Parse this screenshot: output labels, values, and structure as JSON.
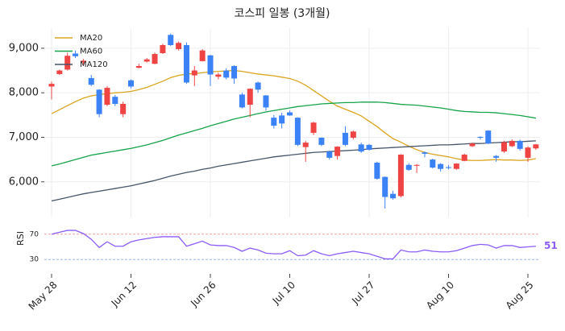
{
  "chart_data": [
    {
      "type": "candlestick",
      "title": "코스피 일봉 (3개월)",
      "categories": [
        "May 28",
        null,
        null,
        null,
        null,
        null,
        null,
        null,
        null,
        null,
        "Jun 12",
        null,
        null,
        null,
        null,
        null,
        null,
        null,
        null,
        null,
        "Jun 26",
        null,
        null,
        null,
        null,
        null,
        null,
        null,
        null,
        null,
        "Jul 10",
        null,
        null,
        null,
        null,
        null,
        null,
        null,
        null,
        null,
        "Jul 27",
        null,
        null,
        null,
        null,
        null,
        null,
        null,
        null,
        null,
        "Aug 10",
        null,
        null,
        null,
        null,
        null,
        null,
        null,
        null,
        null,
        "Aug 25",
        null
      ],
      "open": [
        8140,
        8420,
        8520,
        8880,
        8680,
        8330,
        8070,
        7730,
        7910,
        7520,
        8280,
        8560,
        8700,
        8650,
        8890,
        9300,
        8980,
        9070,
        8390,
        8710,
        8840,
        8360,
        8500,
        8600,
        7960,
        7730,
        8230,
        7940,
        7440,
        7490,
        7560,
        7440,
        6780,
        7100,
        6990,
        6680,
        6580,
        7100,
        6990,
        6840,
        6830,
        6430,
        6110,
        5730,
        5680,
        6380,
        6360,
        6660,
        6500,
        6400,
        6330,
        6290,
        6470,
        6800,
        7010,
        7150,
        6580,
        6680,
        6800,
        6920,
        6540,
        6750
      ],
      "high": [
        8250,
        8520,
        8900,
        8950,
        8760,
        8400,
        8080,
        8150,
        7950,
        7800,
        8300,
        8650,
        8780,
        8900,
        9100,
        9330,
        9150,
        9130,
        8600,
        8980,
        8850,
        8450,
        8550,
        8620,
        8000,
        8100,
        8250,
        7950,
        7500,
        7550,
        7600,
        7450,
        6920,
        7350,
        7000,
        6700,
        6800,
        7250,
        7150,
        6880,
        6850,
        6450,
        6120,
        5800,
        6620,
        6420,
        6400,
        6680,
        6520,
        6420,
        6380,
        6420,
        6630,
        6880,
        7020,
        7160,
        6600,
        6920,
        6950,
        6950,
        6800,
        6850
      ],
      "low": [
        7850,
        8400,
        8500,
        8780,
        8600,
        8150,
        7450,
        7700,
        7700,
        7450,
        8100,
        8550,
        8680,
        8640,
        8870,
        9050,
        8950,
        8200,
        8150,
        8700,
        8150,
        8300,
        8300,
        8200,
        7650,
        7450,
        8000,
        7600,
        7200,
        7200,
        7480,
        6800,
        6450,
        7050,
        6800,
        6500,
        6500,
        6800,
        6950,
        6650,
        6700,
        6050,
        5400,
        5600,
        5650,
        6250,
        6200,
        6550,
        6300,
        6230,
        6280,
        6270,
        6460,
        6780,
        6950,
        6850,
        6450,
        6650,
        6780,
        6700,
        6450,
        6720
      ],
      "close": [
        8200,
        8500,
        8830,
        8820,
        8720,
        8180,
        7520,
        8110,
        7750,
        7750,
        8140,
        8600,
        8750,
        8870,
        9070,
        9070,
        9120,
        8230,
        8500,
        8950,
        8410,
        8410,
        8340,
        8320,
        7670,
        8090,
        8070,
        7670,
        7260,
        7310,
        7490,
        6830,
        6880,
        7330,
        6830,
        6540,
        6790,
        6830,
        7130,
        6680,
        6720,
        6070,
        5660,
        5630,
        6610,
        6270,
        6380,
        6630,
        6320,
        6290,
        6310,
        6410,
        6610,
        6860,
        6990,
        6860,
        6540,
        6890,
        6920,
        6740,
        6770,
        6840
      ],
      "up_color": "#ef4444",
      "down_color": "#3b82f6",
      "series": [
        {
          "name": "MA20",
          "color": "#daa520",
          "values": [
            7530,
            7620,
            7710,
            7800,
            7880,
            7930,
            7960,
            7980,
            8000,
            8010,
            8030,
            8070,
            8120,
            8190,
            8260,
            8340,
            8390,
            8420,
            8430,
            8450,
            8470,
            8480,
            8490,
            8500,
            8480,
            8450,
            8420,
            8400,
            8380,
            8350,
            8320,
            8260,
            8170,
            8050,
            7930,
            7810,
            7700,
            7630,
            7560,
            7480,
            7360,
            7240,
            7100,
            6970,
            6890,
            6800,
            6720,
            6660,
            6620,
            6590,
            6560,
            6520,
            6490,
            6480,
            6480,
            6490,
            6500,
            6490,
            6490,
            6480,
            6490,
            6520
          ]
        },
        {
          "name": "MA60",
          "color": "#16a34a",
          "values": [
            6360,
            6400,
            6450,
            6500,
            6550,
            6600,
            6630,
            6660,
            6690,
            6720,
            6750,
            6790,
            6830,
            6880,
            6930,
            6990,
            7050,
            7100,
            7150,
            7200,
            7260,
            7310,
            7360,
            7410,
            7450,
            7490,
            7530,
            7570,
            7600,
            7630,
            7660,
            7690,
            7710,
            7730,
            7750,
            7760,
            7770,
            7780,
            7780,
            7790,
            7790,
            7790,
            7780,
            7760,
            7740,
            7730,
            7720,
            7700,
            7680,
            7660,
            7630,
            7600,
            7580,
            7570,
            7560,
            7560,
            7550,
            7530,
            7510,
            7490,
            7460,
            7430
          ]
        },
        {
          "name": "MA120",
          "color": "#475569",
          "values": [
            5570,
            5610,
            5650,
            5690,
            5730,
            5760,
            5790,
            5820,
            5850,
            5880,
            5910,
            5950,
            5990,
            6030,
            6080,
            6130,
            6170,
            6210,
            6240,
            6280,
            6310,
            6350,
            6380,
            6410,
            6440,
            6470,
            6500,
            6530,
            6560,
            6580,
            6600,
            6620,
            6640,
            6660,
            6670,
            6680,
            6690,
            6700,
            6710,
            6720,
            6740,
            6750,
            6760,
            6770,
            6780,
            6790,
            6800,
            6810,
            6820,
            6830,
            6830,
            6840,
            6850,
            6860,
            6860,
            6870,
            6880,
            6890,
            6900,
            6900,
            6910,
            6920
          ]
        }
      ],
      "ylim": [
        5200,
        9450
      ],
      "yticks": [
        {
          "value": 6000,
          "label": "6,000"
        },
        {
          "value": 7000,
          "label": "7,000"
        },
        {
          "value": 8000,
          "label": "8,000"
        },
        {
          "value": 9000,
          "label": "9,000"
        }
      ],
      "grid": true,
      "legend": "upper left"
    },
    {
      "type": "line",
      "y_label": "RSI",
      "color": "#8b5cf6",
      "values": [
        70,
        73,
        76,
        76,
        71,
        62,
        49,
        58,
        51,
        51,
        58,
        61,
        63,
        65,
        66,
        66,
        66,
        51,
        55,
        59,
        53,
        52,
        52,
        49,
        43,
        48,
        45,
        40,
        39,
        39,
        44,
        36,
        37,
        44,
        39,
        36,
        39,
        41,
        43,
        41,
        39,
        35,
        31,
        31,
        45,
        42,
        42,
        45,
        43,
        42,
        42,
        44,
        48,
        52,
        54,
        53,
        48,
        52,
        52,
        49,
        50,
        51
      ],
      "ylim": [
        15,
        85
      ],
      "yticks": [
        30,
        70
      ]
    }
  ]
}
